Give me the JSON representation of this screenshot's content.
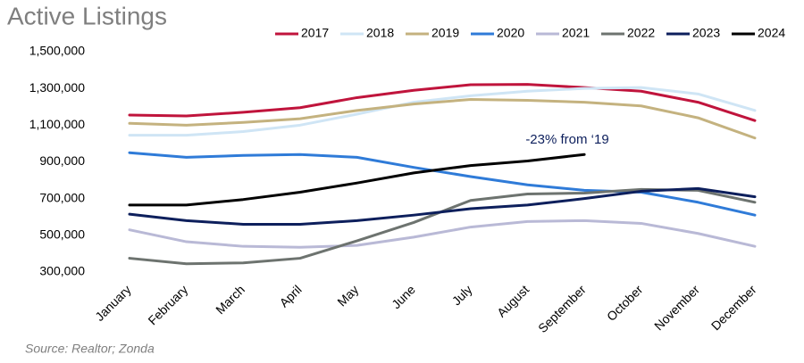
{
  "chart_data": {
    "type": "line",
    "title": "Active Listings",
    "categories": [
      "January",
      "February",
      "March",
      "April",
      "May",
      "June",
      "July",
      "August",
      "September",
      "October",
      "November",
      "December"
    ],
    "series": [
      {
        "name": "2017",
        "color": "#c0143c",
        "values": [
          1155000,
          1150000,
          1170000,
          1195000,
          1250000,
          1290000,
          1320000,
          1322000,
          1305000,
          1285000,
          1225000,
          1125000
        ]
      },
      {
        "name": "2018",
        "color": "#cfe5f5",
        "values": [
          1045000,
          1045000,
          1065000,
          1100000,
          1160000,
          1225000,
          1260000,
          1285000,
          1300000,
          1305000,
          1270000,
          1180000
        ]
      },
      {
        "name": "2019",
        "color": "#c4b27f",
        "values": [
          1110000,
          1100000,
          1115000,
          1135000,
          1180000,
          1215000,
          1240000,
          1235000,
          1225000,
          1205000,
          1140000,
          1030000
        ]
      },
      {
        "name": "2020",
        "color": "#2f7bd8",
        "values": [
          950000,
          925000,
          935000,
          940000,
          925000,
          870000,
          820000,
          775000,
          745000,
          735000,
          680000,
          610000
        ]
      },
      {
        "name": "2021",
        "color": "#b9b9d6",
        "values": [
          530000,
          465000,
          440000,
          435000,
          445000,
          490000,
          545000,
          575000,
          580000,
          565000,
          510000,
          440000
        ]
      },
      {
        "name": "2022",
        "color": "#6d736f",
        "values": [
          375000,
          345000,
          350000,
          375000,
          470000,
          570000,
          690000,
          725000,
          730000,
          750000,
          745000,
          680000
        ]
      },
      {
        "name": "2023",
        "color": "#0d1f5c",
        "values": [
          615000,
          580000,
          560000,
          560000,
          580000,
          610000,
          645000,
          665000,
          700000,
          740000,
          755000,
          710000
        ]
      },
      {
        "name": "2024",
        "color": "#000000",
        "values": [
          665000,
          665000,
          695000,
          735000,
          785000,
          840000,
          880000,
          905000,
          940000,
          null,
          null,
          null
        ]
      }
    ],
    "ylim": [
      300000,
      1500000
    ],
    "yticks": [
      {
        "value": 300000,
        "label": "300,000"
      },
      {
        "value": 500000,
        "label": "500,000"
      },
      {
        "value": 700000,
        "label": "700,000"
      },
      {
        "value": 900000,
        "label": "900,000"
      },
      {
        "value": 1100000,
        "label": "1,100,000"
      },
      {
        "value": 1300000,
        "label": "1,300,000"
      },
      {
        "value": 1500000,
        "label": "1,500,000"
      }
    ],
    "annotations": [
      "-23% from ‘19"
    ],
    "source": "Source: Realtor; Zonda",
    "grid": false
  }
}
